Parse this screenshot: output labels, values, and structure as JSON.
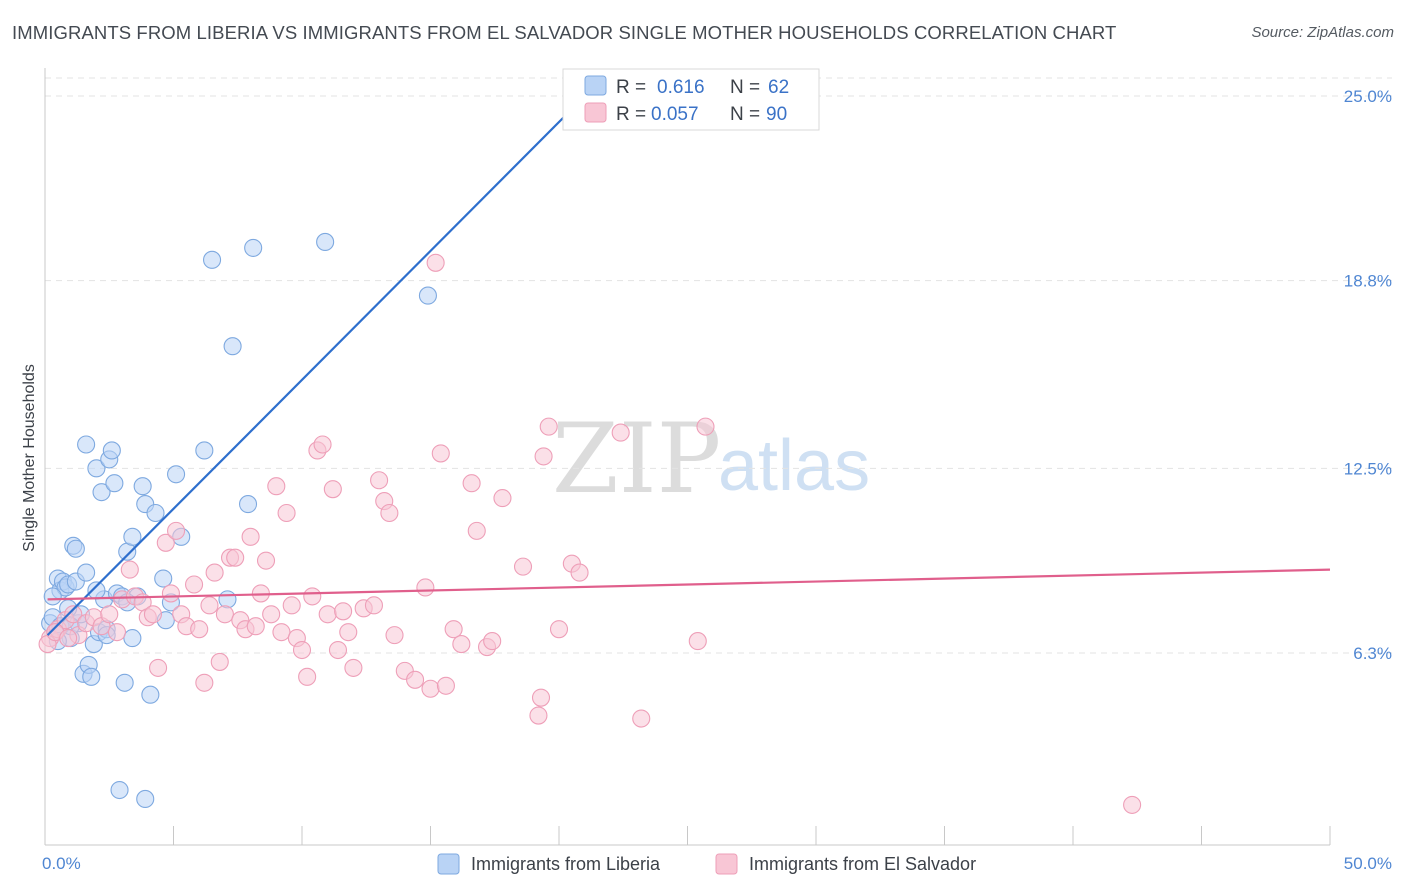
{
  "title": "IMMIGRANTS FROM LIBERIA VS IMMIGRANTS FROM EL SALVADOR SINGLE MOTHER HOUSEHOLDS CORRELATION CHART",
  "source": "Source: ZipAtlas.com",
  "watermark": {
    "zip": "ZIP",
    "atlas": "atlas"
  },
  "colors": {
    "liberia_fill": "#b9d3f5",
    "liberia_stroke": "#7ea9e0",
    "liberia_line": "#2e6fcd",
    "salvador_fill": "#f8c6d5",
    "salvador_stroke": "#ee9fb8",
    "salvador_line": "#e05f8c",
    "grid": "#e3e3e3",
    "axis_label": "#4f86d2"
  },
  "chart_data": {
    "type": "scatter",
    "xlabel": "",
    "ylabel": "Single Mother Households",
    "xlim": [
      0,
      50
    ],
    "ylim": [
      0,
      26
    ],
    "x_tick_labels": [
      "0.0%",
      "50.0%"
    ],
    "y_ticks": [
      {
        "value": 6.3,
        "label": "6.3%"
      },
      {
        "value": 12.5,
        "label": "12.5%"
      },
      {
        "value": 18.8,
        "label": "18.8%"
      },
      {
        "value": 25.0,
        "label": "25.0%"
      }
    ],
    "legend": [
      {
        "name": "Immigrants from Liberia",
        "r_label": "R =",
        "r": "0.616",
        "n_label": "N =",
        "n": "62"
      },
      {
        "name": "Immigrants from El Salvador",
        "r_label": "R =",
        "r": "0.057",
        "n_label": "N =",
        "n": "90"
      }
    ],
    "series": [
      {
        "name": "Immigrants from Liberia",
        "trend": {
          "x0": 0.1,
          "y0": 6.9,
          "x1": 20.2,
          "y1": 24.3
        },
        "points": [
          [
            0.2,
            7.3
          ],
          [
            0.3,
            7.5
          ],
          [
            0.4,
            7.0
          ],
          [
            0.5,
            8.8
          ],
          [
            0.6,
            8.4
          ],
          [
            0.7,
            8.7
          ],
          [
            0.8,
            8.5
          ],
          [
            0.9,
            8.6
          ],
          [
            1.0,
            6.8
          ],
          [
            1.1,
            9.9
          ],
          [
            1.2,
            9.8
          ],
          [
            1.3,
            7.3
          ],
          [
            1.4,
            7.6
          ],
          [
            1.5,
            5.6
          ],
          [
            1.6,
            13.3
          ],
          [
            1.7,
            5.9
          ],
          [
            1.8,
            5.5
          ],
          [
            1.9,
            6.6
          ],
          [
            2.0,
            12.5
          ],
          [
            2.1,
            7.0
          ],
          [
            2.2,
            11.7
          ],
          [
            2.3,
            8.1
          ],
          [
            2.4,
            7.1
          ],
          [
            2.5,
            12.8
          ],
          [
            2.6,
            13.1
          ],
          [
            2.7,
            12.0
          ],
          [
            2.8,
            8.3
          ],
          [
            3.0,
            8.2
          ],
          [
            3.1,
            5.3
          ],
          [
            3.2,
            9.7
          ],
          [
            3.4,
            10.2
          ],
          [
            3.4,
            6.8
          ],
          [
            3.6,
            8.2
          ],
          [
            3.8,
            11.9
          ],
          [
            3.9,
            11.3
          ],
          [
            4.1,
            4.9
          ],
          [
            4.3,
            11.0
          ],
          [
            4.6,
            8.8
          ],
          [
            4.7,
            7.4
          ],
          [
            4.9,
            8.0
          ],
          [
            5.1,
            12.3
          ],
          [
            5.3,
            10.2
          ],
          [
            6.2,
            13.1
          ],
          [
            6.5,
            19.5
          ],
          [
            7.1,
            8.1
          ],
          [
            7.3,
            16.6
          ],
          [
            7.9,
            11.3
          ],
          [
            8.1,
            19.9
          ],
          [
            10.9,
            20.1
          ],
          [
            14.9,
            18.3
          ],
          [
            2.9,
            1.7
          ],
          [
            3.9,
            1.4
          ],
          [
            0.6,
            7.2
          ],
          [
            1.2,
            8.7
          ],
          [
            0.9,
            7.8
          ],
          [
            2.4,
            6.9
          ],
          [
            0.3,
            8.2
          ],
          [
            1.6,
            9.0
          ],
          [
            3.2,
            8.0
          ],
          [
            0.5,
            6.7
          ],
          [
            1.0,
            7.2
          ],
          [
            2.0,
            8.4
          ]
        ]
      },
      {
        "name": "Immigrants from El Salvador",
        "trend": {
          "x0": 0.1,
          "y0": 8.1,
          "x1": 50.0,
          "y1": 9.1
        },
        "points": [
          [
            0.2,
            6.8
          ],
          [
            0.5,
            7.1
          ],
          [
            0.8,
            7.4
          ],
          [
            1.1,
            7.6
          ],
          [
            1.3,
            6.9
          ],
          [
            1.6,
            7.3
          ],
          [
            1.9,
            7.5
          ],
          [
            2.2,
            7.2
          ],
          [
            2.5,
            7.6
          ],
          [
            2.8,
            7.0
          ],
          [
            3.0,
            8.1
          ],
          [
            3.3,
            9.1
          ],
          [
            3.5,
            8.2
          ],
          [
            3.8,
            8.0
          ],
          [
            4.0,
            7.5
          ],
          [
            4.2,
            7.6
          ],
          [
            4.4,
            5.8
          ],
          [
            4.7,
            10.0
          ],
          [
            4.9,
            8.3
          ],
          [
            5.1,
            10.4
          ],
          [
            5.3,
            7.6
          ],
          [
            5.5,
            7.2
          ],
          [
            5.8,
            8.6
          ],
          [
            6.0,
            7.1
          ],
          [
            6.2,
            5.3
          ],
          [
            6.4,
            7.9
          ],
          [
            6.6,
            9.0
          ],
          [
            6.8,
            6.0
          ],
          [
            7.0,
            7.6
          ],
          [
            7.2,
            9.5
          ],
          [
            7.4,
            9.5
          ],
          [
            7.6,
            7.4
          ],
          [
            7.8,
            7.1
          ],
          [
            8.0,
            10.2
          ],
          [
            8.2,
            7.2
          ],
          [
            8.4,
            8.3
          ],
          [
            8.6,
            9.4
          ],
          [
            8.8,
            7.6
          ],
          [
            9.0,
            11.9
          ],
          [
            9.2,
            7.0
          ],
          [
            9.4,
            11.0
          ],
          [
            9.6,
            7.9
          ],
          [
            9.8,
            6.8
          ],
          [
            10.0,
            6.4
          ],
          [
            10.2,
            5.5
          ],
          [
            10.4,
            8.2
          ],
          [
            10.6,
            13.1
          ],
          [
            10.8,
            13.3
          ],
          [
            11.0,
            7.6
          ],
          [
            11.2,
            11.8
          ],
          [
            11.4,
            6.4
          ],
          [
            11.6,
            7.7
          ],
          [
            11.8,
            7.0
          ],
          [
            12.0,
            5.8
          ],
          [
            12.4,
            7.8
          ],
          [
            12.8,
            7.9
          ],
          [
            13.0,
            12.1
          ],
          [
            13.2,
            11.4
          ],
          [
            13.4,
            11.0
          ],
          [
            13.6,
            6.9
          ],
          [
            14.0,
            5.7
          ],
          [
            14.4,
            5.4
          ],
          [
            14.8,
            8.5
          ],
          [
            15.0,
            5.1
          ],
          [
            15.4,
            13.0
          ],
          [
            15.6,
            5.2
          ],
          [
            15.9,
            7.1
          ],
          [
            16.2,
            6.6
          ],
          [
            16.6,
            12.0
          ],
          [
            16.8,
            10.4
          ],
          [
            17.2,
            6.5
          ],
          [
            17.4,
            6.7
          ],
          [
            17.8,
            11.5
          ],
          [
            18.6,
            9.2
          ],
          [
            19.2,
            4.2
          ],
          [
            19.3,
            4.8
          ],
          [
            19.4,
            12.9
          ],
          [
            19.6,
            13.9
          ],
          [
            20.0,
            7.1
          ],
          [
            20.5,
            9.3
          ],
          [
            20.8,
            9.0
          ],
          [
            22.4,
            13.7
          ],
          [
            23.2,
            4.1
          ],
          [
            25.7,
            13.9
          ],
          [
            25.4,
            6.7
          ],
          [
            15.2,
            19.4
          ],
          [
            42.3,
            1.2
          ],
          [
            0.1,
            6.6
          ],
          [
            0.4,
            7.0
          ],
          [
            0.9,
            6.8
          ]
        ]
      }
    ]
  },
  "x_ticks_minor": [
    0,
    5,
    10,
    15,
    20,
    25,
    30,
    35,
    40,
    45,
    50
  ]
}
